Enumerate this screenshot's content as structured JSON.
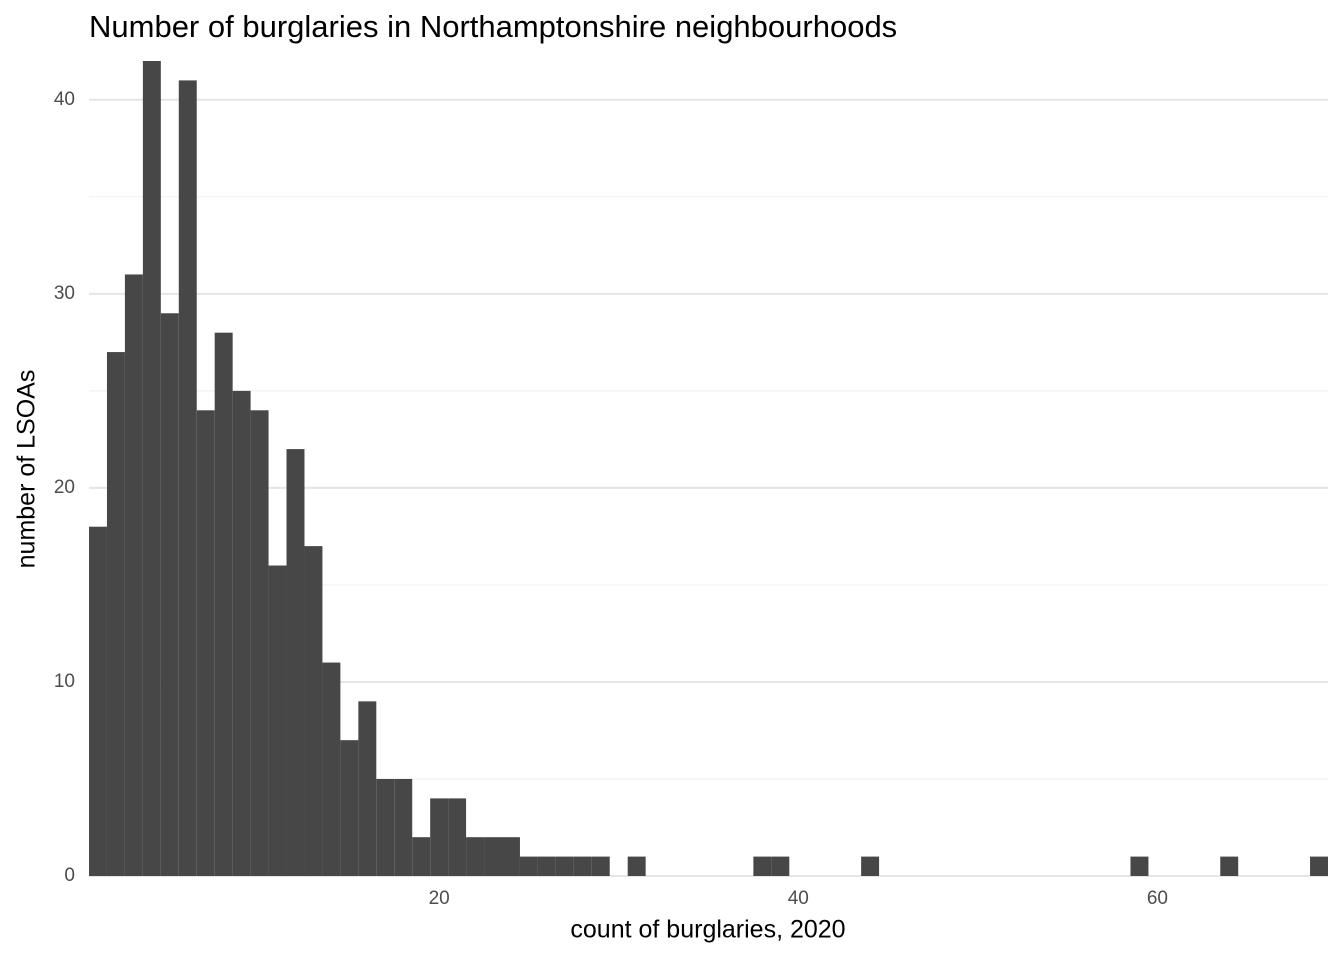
{
  "chart_data": {
    "type": "histogram",
    "title": "Number of burglaries in Northamptonshire neighbourhoods",
    "xlabel": "count of burglaries, 2020",
    "ylabel": "number of LSOAs",
    "bins": [
      0.5,
      1.5,
      2.5,
      3.5,
      4.5,
      5.5,
      6.5,
      7.5,
      8.5,
      9.5,
      10.5,
      11.5,
      12.5,
      13.5,
      14.5,
      15.5,
      16.5,
      17.5,
      18.5,
      19.5,
      20.5,
      21.5,
      22.5,
      23.5,
      24.5,
      25.5,
      26.5,
      27.5,
      28.5,
      29.5,
      30.5,
      31.5,
      32.5,
      33.5,
      34.5,
      35.5,
      36.5,
      37.5,
      38.5,
      39.5,
      40.5,
      41.5,
      42.5,
      43.5,
      44.5,
      45.5,
      46.5,
      47.5,
      48.5,
      49.5,
      50.5,
      51.5,
      52.5,
      53.5,
      54.5,
      55.5,
      56.5,
      57.5,
      58.5,
      59.5,
      60.5,
      61.5,
      62.5,
      63.5,
      64.5,
      65.5,
      66.5,
      67.5,
      68.5,
      69.5
    ],
    "values": [
      18,
      27,
      31,
      42,
      29,
      41,
      24,
      28,
      25,
      24,
      16,
      22,
      17,
      11,
      7,
      9,
      5,
      5,
      2,
      4,
      4,
      2,
      2,
      2,
      1,
      1,
      1,
      1,
      1,
      0,
      1,
      0,
      0,
      0,
      0,
      0,
      0,
      1,
      1,
      0,
      0,
      0,
      0,
      1,
      0,
      0,
      0,
      0,
      0,
      0,
      0,
      0,
      0,
      0,
      0,
      0,
      0,
      0,
      1,
      0,
      0,
      0,
      0,
      1,
      0,
      0,
      0,
      0,
      1
    ],
    "color": "#474747",
    "xlim": [
      0.5,
      69.5
    ],
    "ylim": [
      0,
      42
    ],
    "xticks": [
      20,
      40,
      60
    ],
    "yticks": [
      0,
      10,
      20,
      30,
      40
    ],
    "grid": true
  }
}
